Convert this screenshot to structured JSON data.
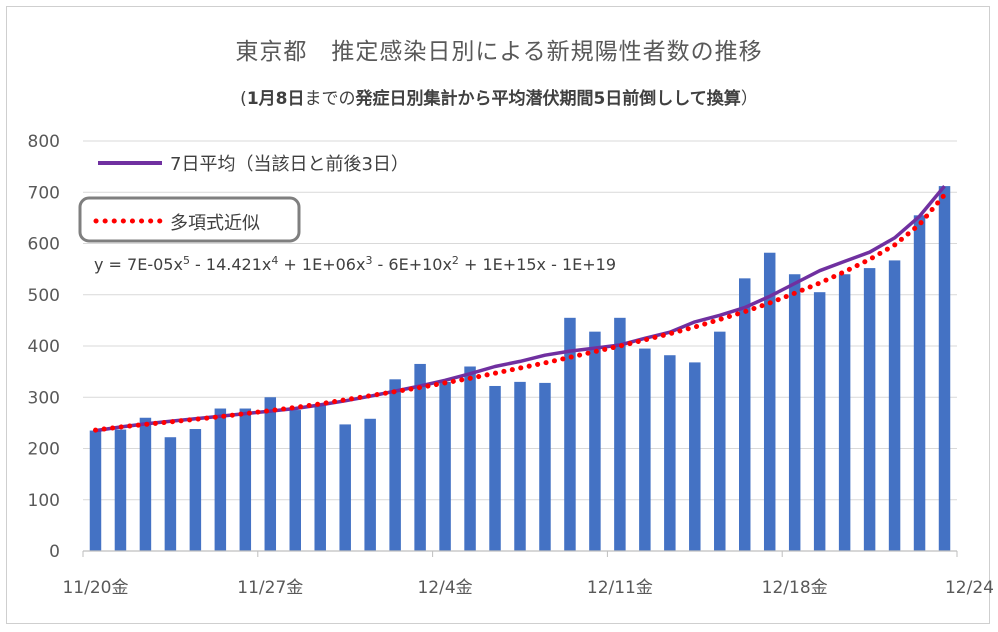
{
  "chart_data": {
    "type": "bar",
    "title": "東京都　推定感染日別による新規陽性者数の推移",
    "subtitle": {
      "open": "(",
      "bold1": "1月8日",
      "normal": "までの",
      "bold2": "発症日別集計から平均潜伏期間5日前倒しして換算",
      "close": "）"
    },
    "ylim": [
      0,
      800
    ],
    "yticks": [
      "0",
      "100",
      "200",
      "300",
      "400",
      "500",
      "600",
      "700",
      "800"
    ],
    "xtick_labels": [
      {
        "index": 0,
        "label": "11/20金"
      },
      {
        "index": 7,
        "label": "11/27金"
      },
      {
        "index": 14,
        "label": "12/4金"
      },
      {
        "index": 21,
        "label": "12/11金"
      },
      {
        "index": 28,
        "label": "12/18金"
      },
      {
        "index": 35,
        "label": "12/24"
      }
    ],
    "bar_color": "#4472C4",
    "values": [
      235,
      237,
      260,
      222,
      238,
      278,
      278,
      300,
      275,
      285,
      247,
      258,
      335,
      365,
      330,
      360,
      322,
      330,
      328,
      455,
      428,
      455,
      395,
      382,
      368,
      428,
      532,
      582,
      540,
      505,
      540,
      552,
      567,
      655,
      712
    ],
    "series": [
      {
        "name": "7日平均（当該日と前後3日）",
        "color": "#7030A0",
        "style": "solid",
        "values": [
          235,
          242,
          248,
          253,
          258,
          263,
          268,
          273,
          278,
          285,
          293,
          302,
          312,
          322,
          333,
          346,
          360,
          370,
          382,
          390,
          396,
          402,
          415,
          427,
          447,
          460,
          475,
          497,
          522,
          547,
          565,
          583,
          611,
          653,
          712
        ]
      },
      {
        "name": "多項式近似",
        "color": "#FF0000",
        "style": "dotted",
        "values": [
          236,
          242,
          247,
          252,
          257,
          262,
          268,
          274,
          280,
          287,
          295,
          303,
          311,
          319,
          328,
          337,
          347,
          357,
          367,
          378,
          389,
          400,
          412,
          424,
          437,
          452,
          467,
          484,
          503,
          523,
          545,
          569,
          597,
          637,
          695
        ]
      }
    ],
    "equation": {
      "base": "y = 7E-05x",
      "parts": [
        {
          "t": "5",
          "sup": true
        },
        {
          "t": " - 14.421x"
        },
        {
          "t": "4",
          "sup": true
        },
        {
          "t": " + 1E+06x"
        },
        {
          "t": "3",
          "sup": true
        },
        {
          "t": " - 6E+10x"
        },
        {
          "t": "2",
          "sup": true
        },
        {
          "t": " + 1E+15x - 1E+19"
        }
      ]
    },
    "grid": true,
    "legend_placement": "top-left"
  }
}
